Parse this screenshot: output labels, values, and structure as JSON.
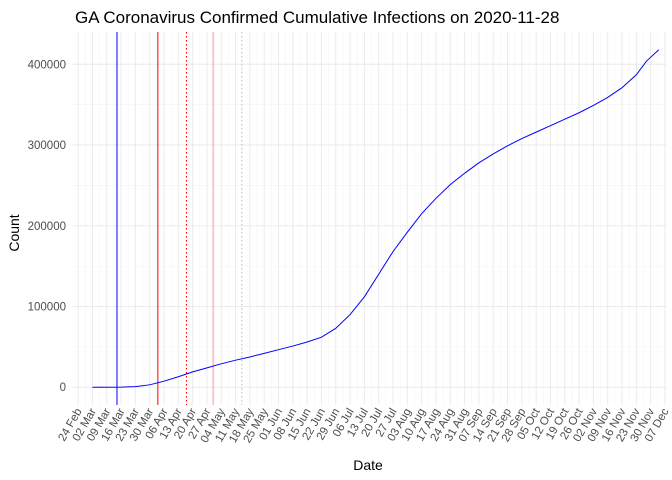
{
  "chart_data": {
    "type": "line",
    "title": "GA Coronavirus Confirmed Cumulative Infections on 2020-11-28",
    "xlabel": "Date",
    "ylabel": "Count",
    "x_axis": "date",
    "xlim": [
      "2020-02-21",
      "2020-12-08"
    ],
    "ylim": [
      -22000,
      440000
    ],
    "yticks": [
      0,
      100000,
      200000,
      300000,
      400000
    ],
    "ytick_labels": [
      "0",
      "100000",
      "200000",
      "300000",
      "400000"
    ],
    "xticks": [
      "2020-02-24",
      "2020-03-02",
      "2020-03-09",
      "2020-03-16",
      "2020-03-23",
      "2020-03-30",
      "2020-04-06",
      "2020-04-13",
      "2020-04-20",
      "2020-04-27",
      "2020-05-04",
      "2020-05-11",
      "2020-05-18",
      "2020-05-25",
      "2020-06-01",
      "2020-06-08",
      "2020-06-15",
      "2020-06-22",
      "2020-06-29",
      "2020-07-06",
      "2020-07-13",
      "2020-07-20",
      "2020-07-27",
      "2020-08-03",
      "2020-08-10",
      "2020-08-17",
      "2020-08-24",
      "2020-08-31",
      "2020-09-07",
      "2020-09-14",
      "2020-09-21",
      "2020-09-28",
      "2020-10-05",
      "2020-10-12",
      "2020-10-19",
      "2020-10-26",
      "2020-11-02",
      "2020-11-09",
      "2020-11-16",
      "2020-11-23",
      "2020-11-30",
      "2020-12-07"
    ],
    "xtick_labels": [
      "24 Feb",
      "02 Mar",
      "09 Mar",
      "16 Mar",
      "23 Mar",
      "30 Mar",
      "06 Apr",
      "13 Apr",
      "20 Apr",
      "27 Apr",
      "04 May",
      "11 May",
      "18 May",
      "25 May",
      "01 Jun",
      "08 Jun",
      "15 Jun",
      "22 Jun",
      "29 Jun",
      "06 Jul",
      "13 Jul",
      "20 Jul",
      "27 Jul",
      "03 Aug",
      "10 Aug",
      "17 Aug",
      "24 Aug",
      "31 Aug",
      "07 Sep",
      "14 Sep",
      "21 Sep",
      "28 Sep",
      "05 Oct",
      "12 Oct",
      "19 Oct",
      "26 Oct",
      "02 Nov",
      "09 Nov",
      "16 Nov",
      "23 Nov",
      "30 Nov",
      "07 Dec"
    ],
    "grid": true,
    "series": [
      {
        "color": "#0000ff",
        "points": [
          [
            "2020-03-02",
            0
          ],
          [
            "2020-03-09",
            50
          ],
          [
            "2020-03-16",
            150
          ],
          [
            "2020-03-23",
            800
          ],
          [
            "2020-03-30",
            3000
          ],
          [
            "2020-04-06",
            7500
          ],
          [
            "2020-04-13",
            13000
          ],
          [
            "2020-04-20",
            19000
          ],
          [
            "2020-04-27",
            24000
          ],
          [
            "2020-05-04",
            29000
          ],
          [
            "2020-05-11",
            33500
          ],
          [
            "2020-05-18",
            37500
          ],
          [
            "2020-05-25",
            42000
          ],
          [
            "2020-06-01",
            46500
          ],
          [
            "2020-06-08",
            51000
          ],
          [
            "2020-06-15",
            56000
          ],
          [
            "2020-06-22",
            62000
          ],
          [
            "2020-06-29",
            73000
          ],
          [
            "2020-07-06",
            90000
          ],
          [
            "2020-07-13",
            112000
          ],
          [
            "2020-07-20",
            140000
          ],
          [
            "2020-07-27",
            168000
          ],
          [
            "2020-08-03",
            192000
          ],
          [
            "2020-08-10",
            215000
          ],
          [
            "2020-08-17",
            234000
          ],
          [
            "2020-08-24",
            251000
          ],
          [
            "2020-08-31",
            265000
          ],
          [
            "2020-09-07",
            278000
          ],
          [
            "2020-09-14",
            289000
          ],
          [
            "2020-09-21",
            299000
          ],
          [
            "2020-09-28",
            308000
          ],
          [
            "2020-10-05",
            316000
          ],
          [
            "2020-10-12",
            324000
          ],
          [
            "2020-10-19",
            332000
          ],
          [
            "2020-10-26",
            340000
          ],
          [
            "2020-11-02",
            349000
          ],
          [
            "2020-11-09",
            359000
          ],
          [
            "2020-11-16",
            371000
          ],
          [
            "2020-11-23",
            387000
          ],
          [
            "2020-11-28",
            404000
          ],
          [
            "2020-12-04",
            418000
          ]
        ]
      }
    ],
    "vlines": [
      {
        "date": "2020-03-14",
        "color": "#0000ff",
        "style": "solid"
      },
      {
        "date": "2020-04-03",
        "color": "#ff0000",
        "style": "solid"
      },
      {
        "date": "2020-04-17",
        "color": "#ff0000",
        "style": "dotted"
      },
      {
        "date": "2020-04-30",
        "color": "#ff9999",
        "style": "solid"
      },
      {
        "date": "2020-05-14",
        "color": "#ffaaaa",
        "style": "dotted"
      }
    ]
  }
}
